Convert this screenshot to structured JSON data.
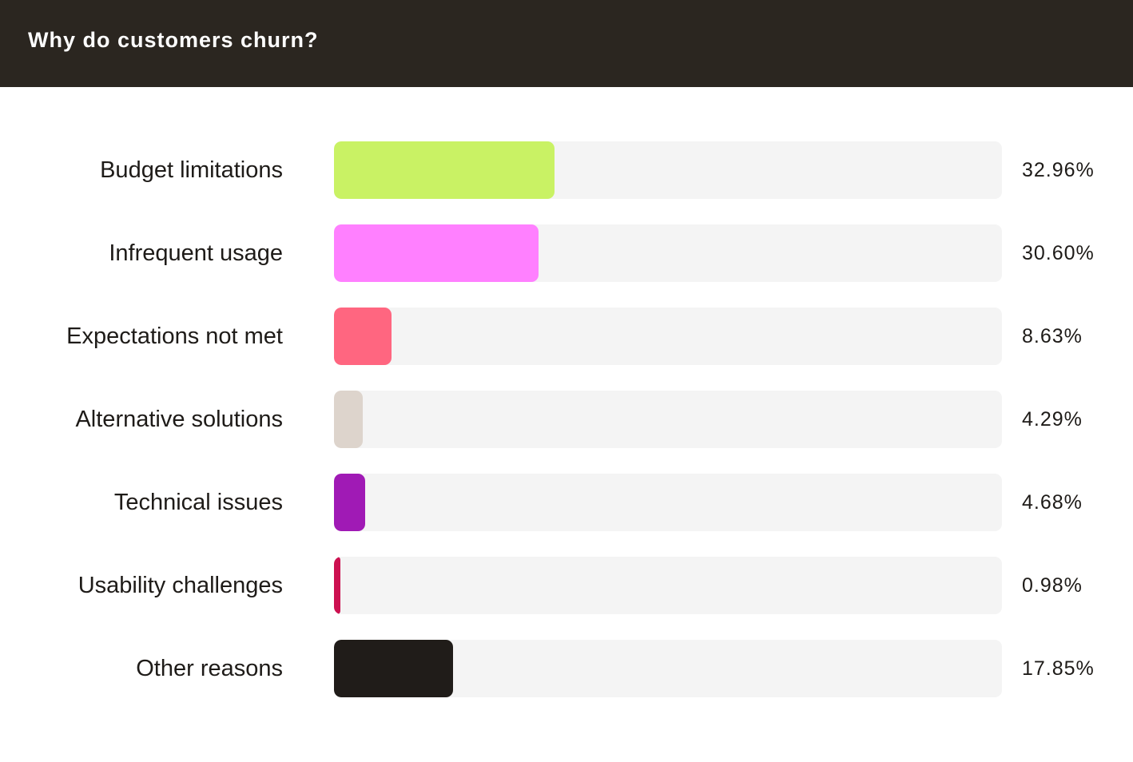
{
  "header": {
    "title": "Why do customers churn?"
  },
  "colors": {
    "header_bg": "#2b2620",
    "track_bg": "#f4f4f4"
  },
  "chart_data": {
    "type": "bar",
    "orientation": "horizontal",
    "title": "Why do customers churn?",
    "categories": [
      "Budget limitations",
      "Infrequent usage",
      "Expectations not met",
      "Alternative solutions",
      "Technical issues",
      "Usability challenges",
      "Other reasons"
    ],
    "values": [
      32.96,
      30.6,
      8.63,
      4.29,
      4.68,
      0.98,
      17.85
    ],
    "value_labels": [
      "32.96%",
      "30.60%",
      "8.63%",
      "4.29%",
      "4.68%",
      "0.98%",
      "17.85%"
    ],
    "colors": [
      "#c9f264",
      "#ff80ff",
      "#ff6680",
      "#ddd4cc",
      "#a01ab5",
      "#cc1150",
      "#201c19"
    ],
    "xlim": [
      0,
      100
    ],
    "grid": false,
    "legend": "none"
  }
}
